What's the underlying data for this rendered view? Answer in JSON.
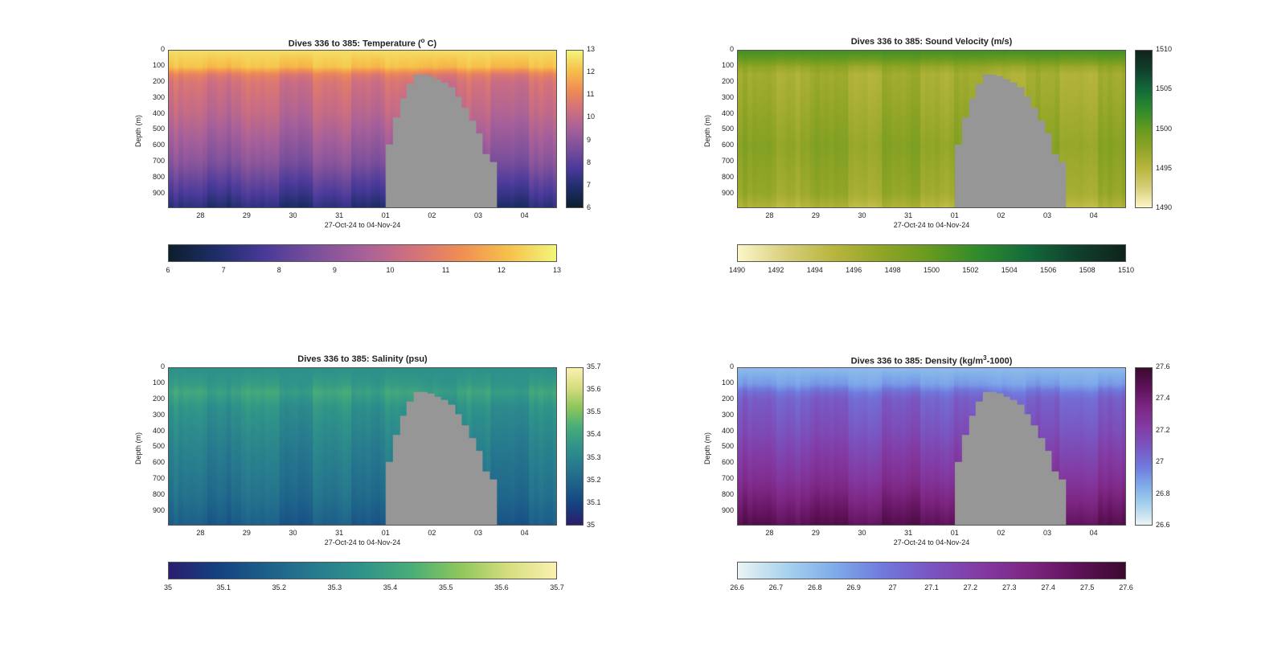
{
  "chart_data": [
    {
      "type": "heatmap",
      "title": "Dives 336 to 385: Temperature (° C)",
      "title_main": "Dives 336 to 385: Temperature (",
      "title_sup": "o",
      "title_tail": " C)",
      "xlabel": "27-Oct-24 to 04-Nov-24",
      "ylabel": "Depth (m)",
      "x_ticks": [
        "28",
        "29",
        "30",
        "31",
        "01",
        "02",
        "03",
        "04"
      ],
      "y_ticks": [
        "0",
        "100",
        "200",
        "300",
        "400",
        "500",
        "600",
        "700",
        "800",
        "900"
      ],
      "ylim": [
        0,
        990
      ],
      "clim": [
        6,
        13
      ],
      "colorbar_v_ticks": [
        "13",
        "12",
        "11",
        "10",
        "9",
        "8",
        "7",
        "6"
      ],
      "colorbar_h_ticks": [
        "6",
        "7",
        "8",
        "9",
        "10",
        "11",
        "12",
        "13"
      ],
      "colormap": [
        "#0b1f2c",
        "#1f2d6a",
        "#4a3a9a",
        "#7a4f9b",
        "#a6609a",
        "#d1707e",
        "#f08c54",
        "#f6c04a",
        "#f3f57a"
      ],
      "profile_depth": [
        0,
        100,
        150,
        200,
        400,
        700,
        900,
        990
      ],
      "profile_value": [
        12.6,
        12.2,
        11.0,
        10.6,
        10.1,
        9.0,
        7.8,
        7.2
      ]
    },
    {
      "type": "heatmap",
      "title": "Dives 336 to 385: Sound Velocity (m/s)",
      "title_main": "Dives 336 to 385: Sound Velocity (m/s)",
      "title_sup": "",
      "title_tail": "",
      "xlabel": "27-Oct-24 to 04-Nov-24",
      "ylabel": "Depth (m)",
      "x_ticks": [
        "28",
        "29",
        "30",
        "31",
        "01",
        "02",
        "03",
        "04"
      ],
      "y_ticks": [
        "0",
        "100",
        "200",
        "300",
        "400",
        "500",
        "600",
        "700",
        "800",
        "900"
      ],
      "ylim": [
        0,
        990
      ],
      "clim": [
        1490,
        1510
      ],
      "colorbar_v_ticks": [
        "1510",
        "1505",
        "1500",
        "1495",
        "1490"
      ],
      "colorbar_h_ticks": [
        "1490",
        "1492",
        "1494",
        "1496",
        "1498",
        "1500",
        "1502",
        "1504",
        "1506",
        "1508",
        "1510"
      ],
      "colormap": [
        "#fcf6c8",
        "#d8ce7a",
        "#b7b53d",
        "#8fa426",
        "#649a1f",
        "#2e8a2c",
        "#136a3a",
        "#10402c",
        "#0f231b"
      ],
      "profile_depth": [
        0,
        50,
        100,
        150,
        300,
        600,
        900,
        990
      ],
      "profile_value": [
        1501.5,
        1500.0,
        1497.5,
        1496.5,
        1497.0,
        1498.2,
        1497.2,
        1495.5
      ]
    },
    {
      "type": "heatmap",
      "title": "Dives 336 to 385: Salinity (psu)",
      "title_main": "Dives 336 to 385: Salinity (psu)",
      "title_sup": "",
      "title_tail": "",
      "xlabel": "27-Oct-24 to 04-Nov-24",
      "ylabel": "Depth (m)",
      "x_ticks": [
        "28",
        "29",
        "30",
        "31",
        "01",
        "02",
        "03",
        "04"
      ],
      "y_ticks": [
        "0",
        "100",
        "200",
        "300",
        "400",
        "500",
        "600",
        "700",
        "800",
        "900"
      ],
      "ylim": [
        0,
        990
      ],
      "clim": [
        35,
        35.7
      ],
      "colorbar_v_ticks": [
        "35.7",
        "35.6",
        "35.5",
        "35.4",
        "35.3",
        "35.2",
        "35.1",
        "35"
      ],
      "colorbar_h_ticks": [
        "35",
        "35.1",
        "35.2",
        "35.3",
        "35.4",
        "35.5",
        "35.6",
        "35.7"
      ],
      "colormap": [
        "#2a1d6e",
        "#14417f",
        "#1d5f8a",
        "#277a8e",
        "#2f938a",
        "#48ad78",
        "#8dc65c",
        "#d5dd7e",
        "#fbf1b0"
      ],
      "profile_depth": [
        0,
        100,
        150,
        250,
        500,
        800,
        990
      ],
      "profile_value": [
        35.34,
        35.38,
        35.42,
        35.36,
        35.3,
        35.24,
        35.18
      ]
    },
    {
      "type": "heatmap",
      "title": "Dives 336 to 385: Density (kg/m³-1000)",
      "title_main": "Dives 336 to 385: Density (kg/m",
      "title_sup": "3",
      "title_tail": "-1000)",
      "xlabel": "27-Oct-24 to 04-Nov-24",
      "ylabel": "Depth (m)",
      "x_ticks": [
        "28",
        "29",
        "30",
        "31",
        "01",
        "02",
        "03",
        "04"
      ],
      "y_ticks": [
        "0",
        "100",
        "200",
        "300",
        "400",
        "500",
        "600",
        "700",
        "800",
        "900"
      ],
      "ylim": [
        0,
        990
      ],
      "clim": [
        26.6,
        27.6
      ],
      "colorbar_v_ticks": [
        "27.6",
        "27.4",
        "27.2",
        "27",
        "26.8",
        "26.6"
      ],
      "colorbar_h_ticks": [
        "26.6",
        "26.7",
        "26.8",
        "26.9",
        "27",
        "27.1",
        "27.2",
        "27.3",
        "27.4",
        "27.5",
        "27.6"
      ],
      "colormap": [
        "#eaf4f4",
        "#a8d2ec",
        "#7eabea",
        "#7078dc",
        "#7a55c0",
        "#833aa3",
        "#7d2683",
        "#5e1259",
        "#3b0a2e"
      ],
      "profile_depth": [
        0,
        100,
        150,
        200,
        400,
        700,
        900,
        990
      ],
      "profile_value": [
        26.8,
        26.9,
        27.02,
        27.08,
        27.15,
        27.3,
        27.45,
        27.52
      ]
    }
  ],
  "gap_mask": {
    "x_days": [
      5.0,
      5.15,
      5.3,
      5.45,
      5.6,
      5.75,
      5.9,
      6.05,
      6.2,
      6.35,
      6.5,
      6.65,
      6.8,
      6.95,
      7.1,
      7.25,
      7.4,
      7.55
    ],
    "top_depth": [
      590,
      420,
      300,
      210,
      150,
      150,
      160,
      180,
      200,
      230,
      290,
      360,
      440,
      520,
      650,
      700,
      990,
      990
    ]
  }
}
